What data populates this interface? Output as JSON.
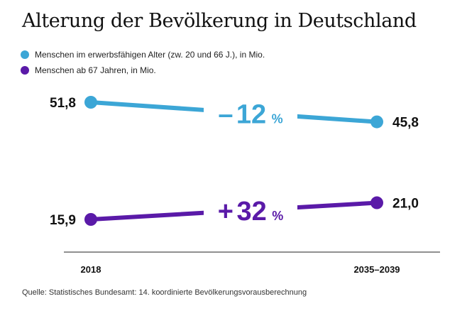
{
  "title": "Alterung der Bevölkerung in Deutschland",
  "source": "Quelle: Statistisches Bundesamt: 14. koordinierte Bevölkerungsvorausberechnung",
  "chart_data": {
    "type": "line",
    "title": "Alterung der Bevölkerung in Deutschland",
    "categories": [
      "2018",
      "2035–2039"
    ],
    "series": [
      {
        "name": "Menschen im erwerbsfähigen Alter (zw. 20 und 66 J.), in Mio.",
        "color": "#3ca6d6",
        "values": [
          51.8,
          45.8
        ],
        "value_labels": [
          "51,8",
          "45,8"
        ],
        "change_sign": "–",
        "change_value": "12",
        "change_unit": "%"
      },
      {
        "name": "Menschen ab 67 Jahren, in Mio.",
        "color": "#5a1aa8",
        "values": [
          15.9,
          21.0
        ],
        "value_labels": [
          "15,9",
          "21,0"
        ],
        "change_sign": "+",
        "change_value": "32",
        "change_unit": "%"
      }
    ],
    "xlabel": "",
    "ylabel": "",
    "legend_position": "top-left",
    "grid": false
  }
}
